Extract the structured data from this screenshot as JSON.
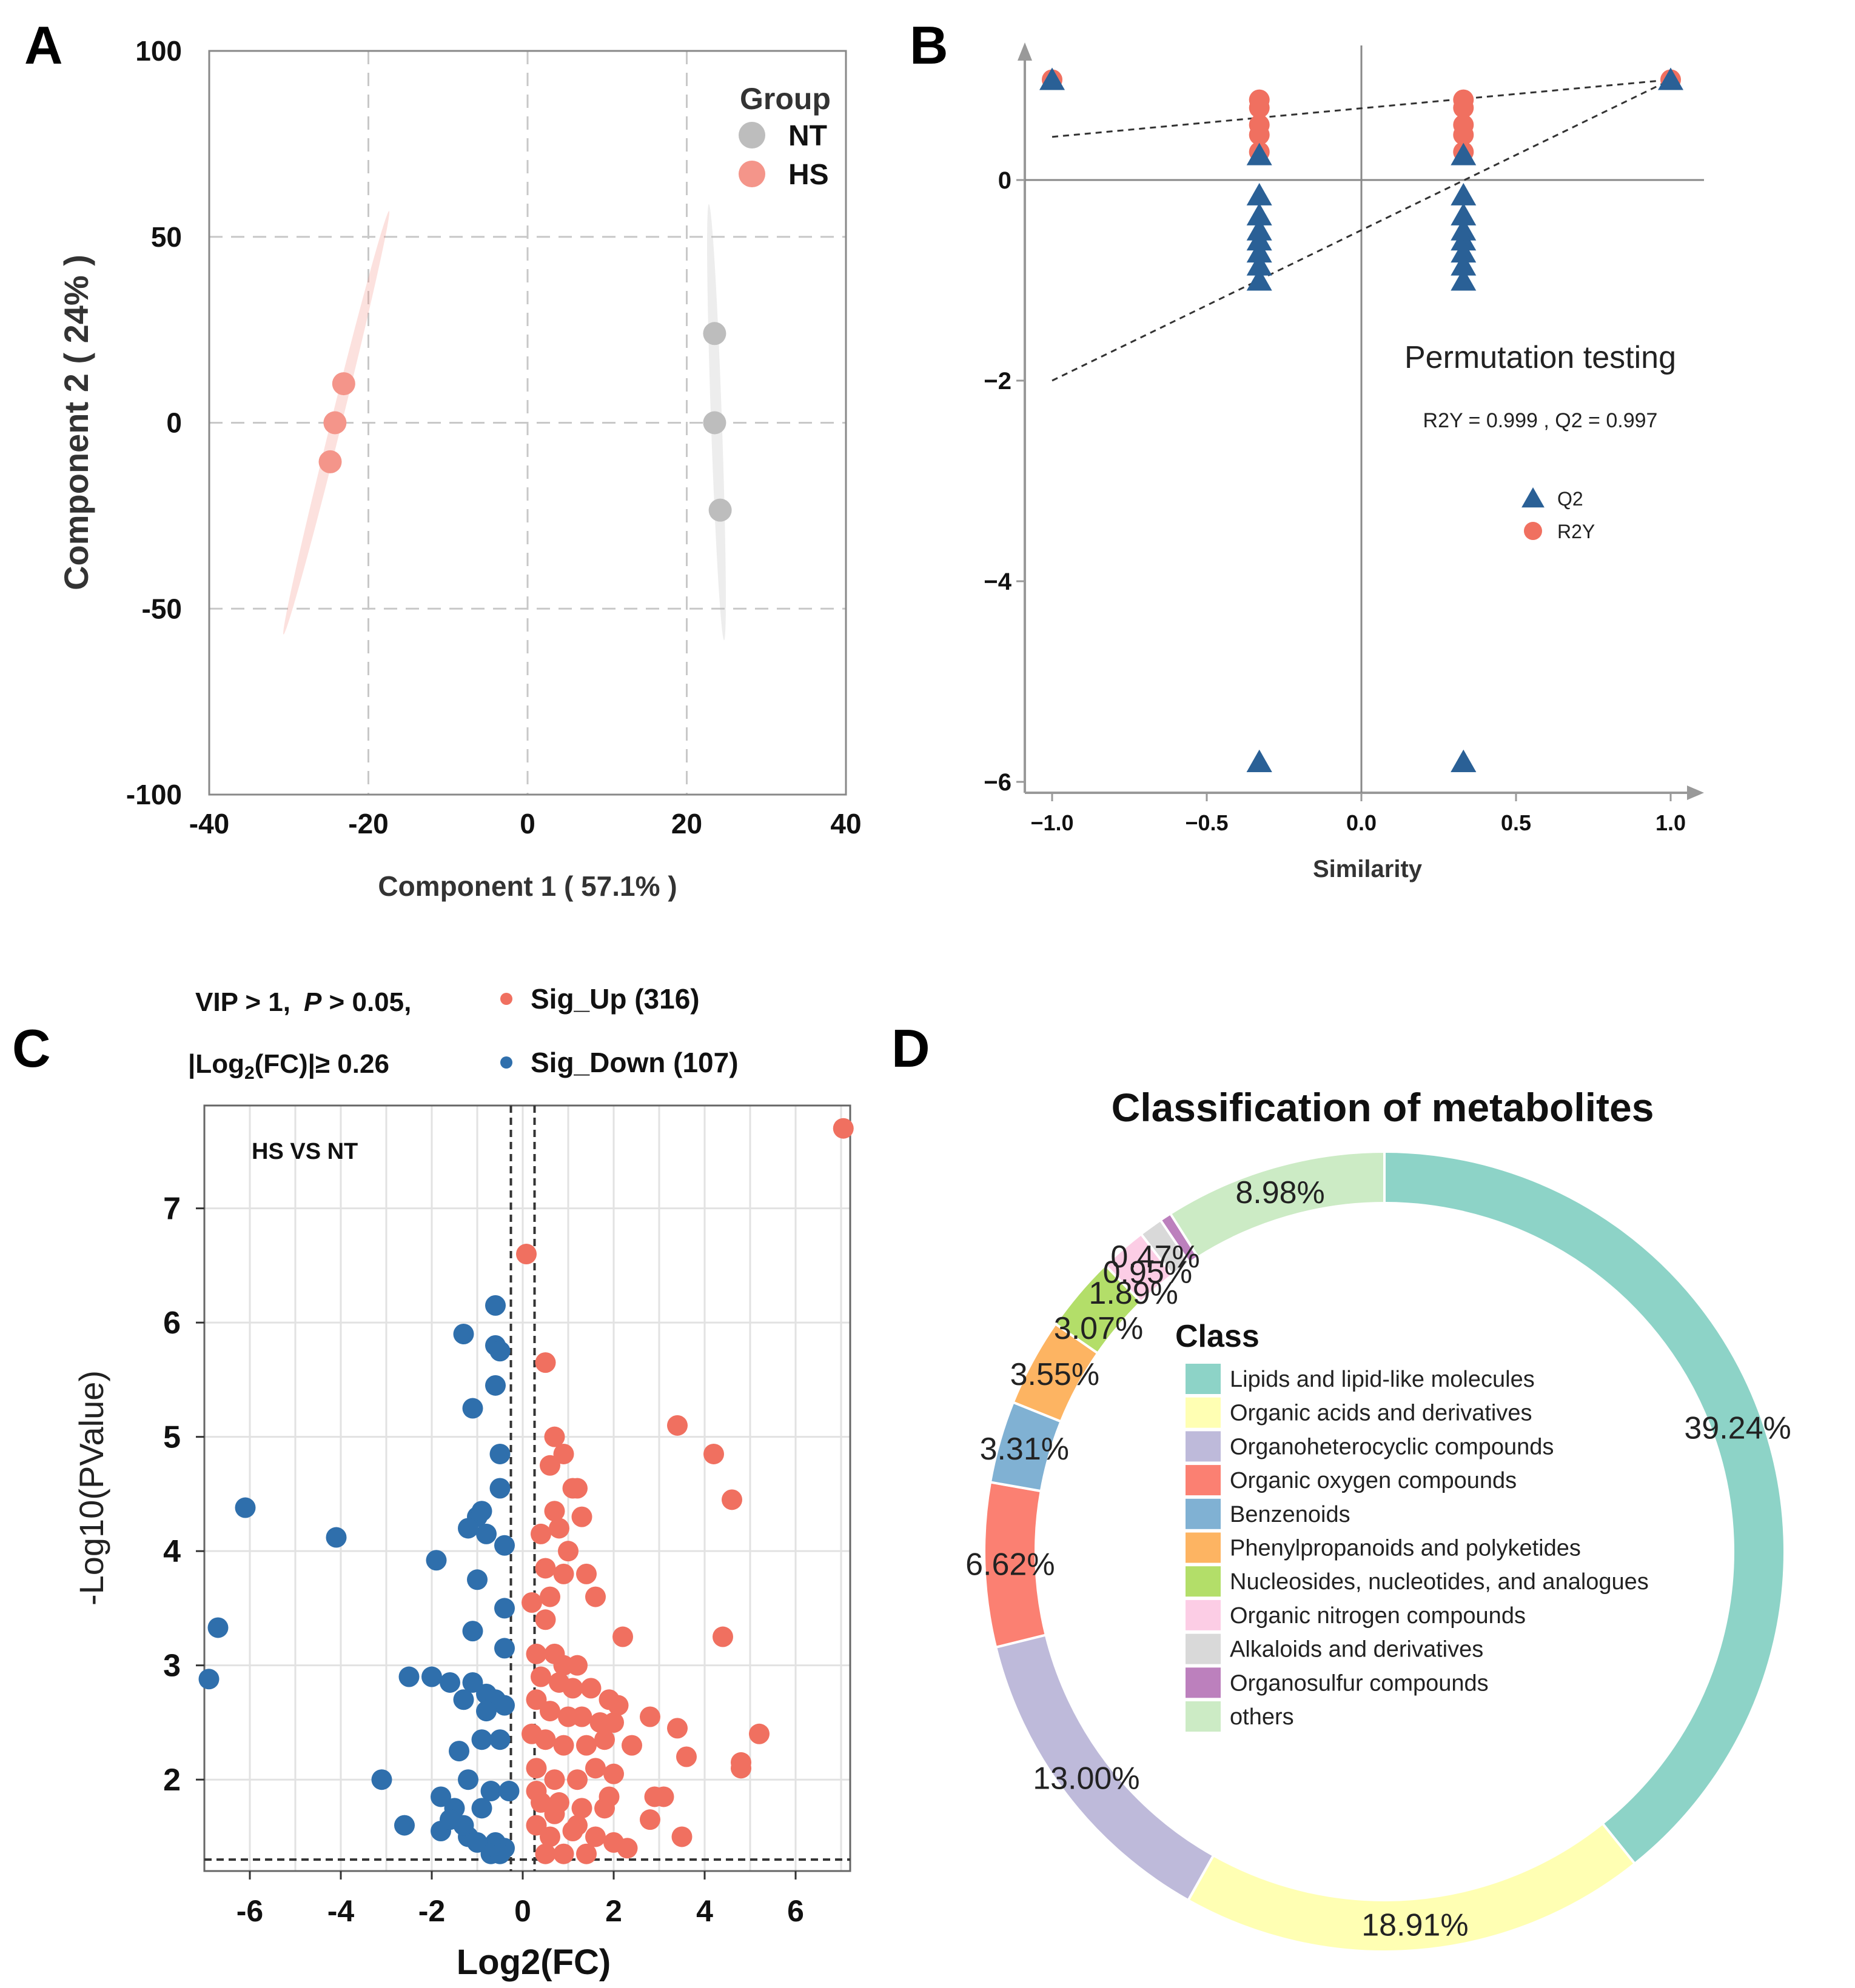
{
  "chart_data": [
    {
      "panel": "A",
      "type": "scatter",
      "xlabel": "Component 1 ( 57.1% )",
      "ylabel": "Component 2 ( 24% )",
      "xlim": [
        -40,
        40
      ],
      "ylim": [
        -100,
        100
      ],
      "xticks": [
        "-40",
        "-20",
        "0",
        "20",
        "40"
      ],
      "yticks": [
        "100",
        "50",
        "0",
        "-50",
        "-100"
      ],
      "grid": true,
      "legend": {
        "title": "Group",
        "position": "top-right"
      },
      "series": [
        {
          "name": "NT",
          "color": "#bdbdbd",
          "x": [
            23.5,
            23.5,
            24.2
          ],
          "y": [
            24,
            0,
            -23.5
          ]
        },
        {
          "name": "HS",
          "color": "#f4958a",
          "x": [
            -23.1,
            -24.2,
            -24.8
          ],
          "y": [
            10.5,
            0,
            -10.5
          ]
        }
      ]
    },
    {
      "panel": "B",
      "type": "scatter",
      "title": "Permutation testing",
      "stats": "R2Y = 0.999 ,  Q2 = 0.997",
      "xlabel": "Similarity",
      "ylabel": "",
      "xlim": [
        -1.0,
        1.0
      ],
      "ylim": [
        -6,
        1
      ],
      "xticks": [
        "−1.0",
        "−0.5",
        "0.0",
        "0.5",
        "1.0"
      ],
      "yticks": [
        "0",
        "−2",
        "−4",
        "−6"
      ],
      "legend_position": "center-right",
      "series": [
        {
          "name": "R2Y",
          "marker": "circle",
          "color": "#f07060",
          "x": [
            -1.0,
            -0.33,
            -0.33,
            -0.33,
            -0.33,
            -0.33,
            0.33,
            0.33,
            0.33,
            0.33,
            0.33,
            1.0
          ],
          "y": [
            1.0,
            0.8,
            0.72,
            0.55,
            0.45,
            0.28,
            0.8,
            0.72,
            0.55,
            0.45,
            0.28,
            1.0
          ]
        },
        {
          "name": "Q2",
          "marker": "triangle",
          "color": "#2a6096",
          "x": [
            -1.0,
            -0.33,
            -0.33,
            -0.33,
            -0.33,
            -0.33,
            -0.33,
            -0.33,
            -0.33,
            -0.33,
            -0.33,
            0.33,
            0.33,
            0.33,
            0.33,
            0.33,
            0.33,
            0.33,
            0.33,
            0.33,
            0.33,
            1.0
          ],
          "y": [
            1.0,
            0.25,
            -0.15,
            -0.35,
            -0.5,
            -0.6,
            -0.72,
            -0.85,
            -1.0,
            -5.8,
            -5.8,
            0.25,
            -0.15,
            -0.35,
            -0.5,
            -0.6,
            -0.72,
            -0.85,
            -1.0,
            -5.8,
            -5.8,
            1.0
          ]
        }
      ],
      "regression_lines": [
        {
          "name": "R2Y",
          "from": [
            -1.0,
            0.43
          ],
          "to": [
            1.0,
            1.0
          ]
        },
        {
          "name": "Q2",
          "from": [
            -1.0,
            -2.0
          ],
          "to": [
            1.0,
            1.0
          ]
        }
      ],
      "data_note": "triangles at y = -5.8 are at x = -0.33 and x = 0.33"
    },
    {
      "panel": "C",
      "type": "scatter",
      "subtitle": "HS VS NT",
      "criteria_line1": "VIP > 1,",
      "criteria_p": "P",
      "criteria_p_rest": " > 0.05,",
      "criteria_line2_pre": "|Log",
      "criteria_line2_sub": "2",
      "criteria_line2_post": "(FC)|≥ 0.26",
      "xlabel": "Log2(FC)",
      "ylabel": "-Log10(PValue)",
      "xlim": [
        -7.0,
        7.2
      ],
      "ylim": [
        1.2,
        7.9
      ],
      "xticks": [
        "-6",
        "-4",
        "-2",
        "0",
        "2",
        "4",
        "6"
      ],
      "yticks": [
        "7",
        "6",
        "5",
        "4",
        "3",
        "2"
      ],
      "thresholds": {
        "x": [
          -0.26,
          0.26
        ],
        "y": 1.3
      },
      "series": [
        {
          "name": "Sig_Up (316)",
          "color": "#f07060",
          "x": [
            7.05,
            0.08,
            0.5,
            3.4,
            4.2,
            4.6,
            0.7,
            0.9,
            0.6,
            1.1,
            1.2,
            0.7,
            1.3,
            0.4,
            0.8,
            1.0,
            1.6,
            0.5,
            0.9,
            1.4,
            0.6,
            0.2,
            0.5,
            2.2,
            4.4,
            0.3,
            0.7,
            0.9,
            1.2,
            0.4,
            0.8,
            1.1,
            1.5,
            1.9,
            2.1,
            0.3,
            0.6,
            1.0,
            1.3,
            1.7,
            2.0,
            2.8,
            3.4,
            5.2,
            0.2,
            0.5,
            0.9,
            1.4,
            1.8,
            2.4,
            3.6,
            4.8,
            4.8,
            0.3,
            0.7,
            1.2,
            1.6,
            2.0,
            2.9,
            3.1,
            0.4,
            0.8,
            1.3,
            1.9,
            2.8,
            0.3,
            0.6,
            1.1,
            1.6,
            2.0,
            2.3,
            3.5,
            0.5,
            0.9,
            1.4,
            0.3,
            0.7,
            1.2,
            1.8
          ],
          "y": [
            7.7,
            6.6,
            5.65,
            5.1,
            4.85,
            4.45,
            5.0,
            4.85,
            4.75,
            4.55,
            4.55,
            4.35,
            4.3,
            4.15,
            4.2,
            4.0,
            3.6,
            3.85,
            3.8,
            3.8,
            3.6,
            3.55,
            3.4,
            3.25,
            3.25,
            3.1,
            3.1,
            3.0,
            3.0,
            2.9,
            2.85,
            2.8,
            2.8,
            2.7,
            2.65,
            2.7,
            2.6,
            2.55,
            2.55,
            2.5,
            2.5,
            2.55,
            2.45,
            2.4,
            2.4,
            2.35,
            2.3,
            2.3,
            2.35,
            2.3,
            2.2,
            2.15,
            2.1,
            2.1,
            2.0,
            2.0,
            2.1,
            2.05,
            1.85,
            1.85,
            1.8,
            1.8,
            1.75,
            1.85,
            1.65,
            1.6,
            1.5,
            1.55,
            1.5,
            1.45,
            1.4,
            1.5,
            1.35,
            1.35,
            1.35,
            1.9,
            1.7,
            1.6,
            1.75
          ]
        },
        {
          "name": "Sig_Down (107)",
          "color": "#2f6fac",
          "x": [
            -0.6,
            -1.3,
            -0.6,
            -0.5,
            -1.1,
            -0.6,
            -0.5,
            -6.1,
            -4.1,
            -0.5,
            -1.0,
            -0.9,
            -1.2,
            -0.8,
            -0.4,
            -1.9,
            -1.0,
            -0.4,
            -1.1,
            -6.7,
            -6.9,
            -0.4,
            -2.5,
            -2.0,
            -1.6,
            -1.1,
            -0.8,
            -0.6,
            -0.4,
            -0.8,
            -1.3,
            -0.5,
            -0.9,
            -1.4,
            -3.1,
            -1.8,
            -1.2,
            -0.7,
            -0.3,
            -0.9,
            -1.5,
            -2.6,
            -1.8,
            -1.2,
            -0.6,
            -0.4,
            -1.0,
            -0.7,
            -0.5,
            -1.3,
            -1.6
          ],
          "y": [
            6.15,
            5.9,
            5.8,
            5.75,
            5.25,
            5.45,
            4.85,
            4.38,
            4.12,
            4.55,
            4.3,
            4.35,
            4.2,
            4.15,
            4.05,
            3.92,
            3.75,
            3.5,
            3.3,
            3.33,
            2.88,
            3.15,
            2.9,
            2.9,
            2.85,
            2.85,
            2.75,
            2.7,
            2.65,
            2.6,
            2.7,
            2.35,
            2.35,
            2.25,
            2.0,
            1.85,
            2.0,
            1.9,
            1.9,
            1.75,
            1.75,
            1.6,
            1.55,
            1.5,
            1.45,
            1.4,
            1.45,
            1.35,
            1.35,
            1.6,
            1.65
          ]
        }
      ]
    },
    {
      "panel": "D",
      "type": "pie",
      "variant": "donut",
      "title": "Classification of metabolites",
      "legend_title": "Class",
      "legend_position": "center",
      "categories": [
        "Lipids and lipid-like molecules",
        "Organic acids and derivatives",
        "Organoheterocyclic compounds",
        "Organic oxygen compounds",
        "Benzenoids",
        "Phenylpropanoids and polyketides",
        "Nucleosides, nucleotides, and analogues",
        "Organic nitrogen compounds",
        "Alkaloids and derivatives",
        "Organosulfur compounds",
        "others"
      ],
      "values": [
        39.24,
        18.91,
        13.0,
        6.62,
        3.31,
        3.55,
        3.07,
        1.89,
        0.95,
        0.47,
        8.98
      ],
      "value_labels": [
        "39.24%",
        "18.91%",
        "13.00%",
        "6.62%",
        "3.31%",
        "3.55%",
        "3.07%",
        "1.89%",
        "0.95%",
        "0.47%",
        "8.98%"
      ],
      "colors": [
        "#8dd3c7",
        "#ffffb3",
        "#bebada",
        "#fb8072",
        "#80b1d3",
        "#fdb462",
        "#b3de69",
        "#fccde5",
        "#d9d9d9",
        "#bc80bd",
        "#ccebc5"
      ]
    }
  ],
  "panel_labels": [
    "A",
    "B",
    "C",
    "D"
  ]
}
